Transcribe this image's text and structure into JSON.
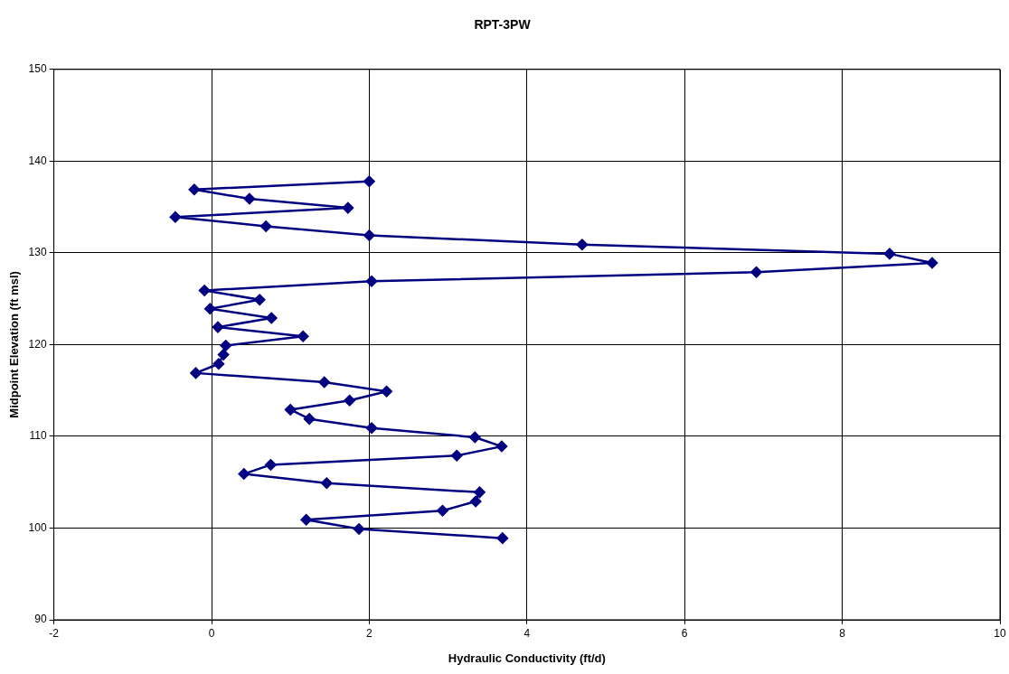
{
  "chart_data": {
    "type": "line",
    "title": "RPT-3PW",
    "xlabel": "Hydraulic Conductivity (ft/d)",
    "ylabel": "Midpoint Elevation (ft msl)",
    "x": [
      2.0,
      -0.22,
      0.48,
      1.73,
      -0.46,
      0.69,
      2.0,
      4.7,
      8.6,
      9.14,
      6.91,
      2.03,
      -0.09,
      0.61,
      -0.02,
      0.76,
      0.08,
      1.16,
      0.18,
      0.15,
      0.09,
      -0.2,
      1.43,
      2.22,
      1.75,
      1.0,
      1.24,
      2.03,
      3.34,
      3.68,
      3.11,
      0.75,
      0.41,
      1.46,
      3.4,
      3.35,
      2.93,
      1.2,
      1.87,
      3.69
    ],
    "values": [
      137.8,
      136.9,
      135.9,
      134.9,
      133.9,
      132.9,
      131.9,
      130.9,
      129.9,
      128.9,
      127.9,
      126.9,
      125.9,
      124.9,
      123.9,
      122.9,
      121.9,
      120.9,
      119.9,
      118.9,
      117.9,
      116.9,
      115.9,
      114.9,
      113.9,
      112.9,
      111.9,
      110.9,
      109.9,
      108.9,
      107.9,
      106.9,
      105.9,
      104.9,
      103.9,
      102.9,
      101.9,
      100.9,
      99.9,
      98.9
    ],
    "color": "#000080",
    "marker": "diamond",
    "line_style": "solid",
    "xlim": [
      -2,
      10
    ],
    "xticks": [
      -2,
      0,
      2,
      4,
      6,
      8,
      10
    ],
    "ylim": [
      90,
      150
    ],
    "yticks": [
      90,
      100,
      110,
      120,
      130,
      140,
      150
    ],
    "grid": true,
    "legend": false
  }
}
